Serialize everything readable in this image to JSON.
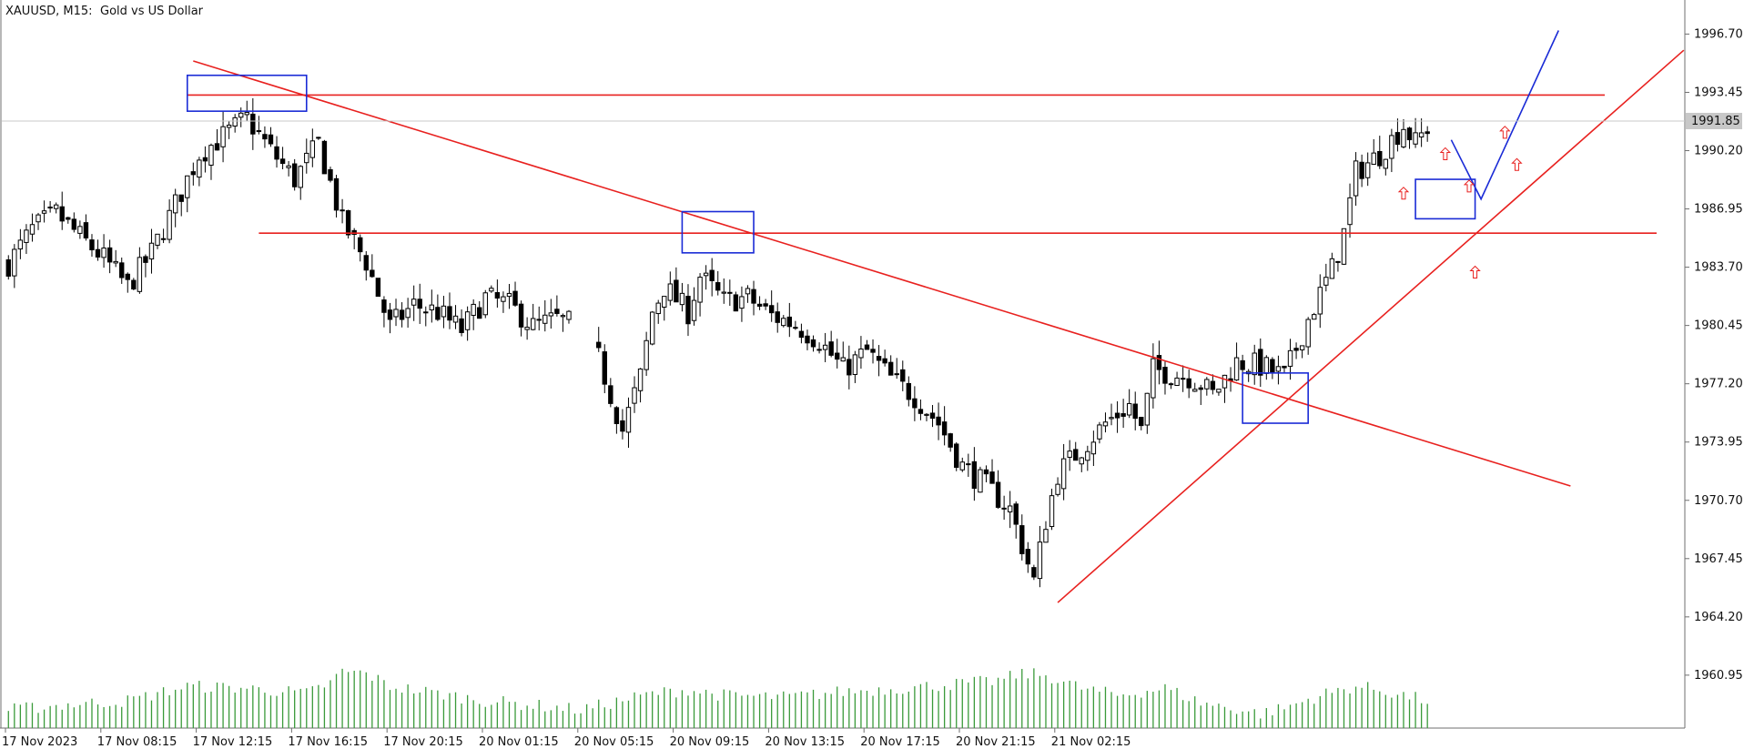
{
  "chart_header": {
    "symbol_timeframe": "XAUUSD, M15:",
    "description": "Gold vs US Dollar"
  },
  "colors": {
    "background": "#ffffff",
    "candle": "#000000",
    "volume": "#3a9a3a",
    "trendline": "#e8211f",
    "annotation": "#1a2bd6",
    "price_tag_bg": "#c8c8c8",
    "price_tag_text": "#ffffff",
    "current_price_line": "#c8c8c8"
  },
  "chart_data": {
    "type": "candlestick",
    "symbol": "XAUUSD",
    "timeframe": "M15",
    "ylim": [
      1958.0,
      1998.6
    ],
    "y_ticks": [
      "1996.70",
      "1993.45",
      "1990.20",
      "1986.95",
      "1983.70",
      "1980.45",
      "1977.20",
      "1973.95",
      "1970.70",
      "1967.45",
      "1964.20",
      "1960.95"
    ],
    "x_ticks": [
      "17 Nov 2023",
      "17 Nov 08:15",
      "17 Nov 12:15",
      "17 Nov 16:15",
      "17 Nov 20:15",
      "20 Nov 01:15",
      "20 Nov 05:15",
      "20 Nov 09:15",
      "20 Nov 13:15",
      "20 Nov 17:15",
      "20 Nov 21:15",
      "21 Nov 02:15"
    ],
    "current_price": "1991.85",
    "close_anchors": [
      [
        0,
        1983.9
      ],
      [
        4,
        1985.8
      ],
      [
        8,
        1986.7
      ],
      [
        12,
        1985.4
      ],
      [
        16,
        1984.2
      ],
      [
        20,
        1982.6
      ],
      [
        24,
        1984.5
      ],
      [
        28,
        1987.2
      ],
      [
        32,
        1990.0
      ],
      [
        36,
        1991.0
      ],
      [
        40,
        1992.0
      ],
      [
        44,
        1990.2
      ],
      [
        48,
        1988.6
      ],
      [
        52,
        1990.6
      ],
      [
        56,
        1986.2
      ],
      [
        60,
        1984.0
      ],
      [
        64,
        1980.4
      ],
      [
        68,
        1981.6
      ],
      [
        72,
        1981.2
      ],
      [
        76,
        1980.2
      ],
      [
        80,
        1982.0
      ],
      [
        84,
        1981.6
      ],
      [
        88,
        1980.4
      ],
      [
        92,
        1980.8
      ],
      [
        94,
        1980.6
      ],
      [
        96,
        null
      ],
      [
        99,
        1978.6
      ],
      [
        103,
        1974.6
      ],
      [
        106,
        1977.6
      ],
      [
        108,
        1981.2
      ],
      [
        110,
        1982.6
      ],
      [
        114,
        1981.2
      ],
      [
        116,
        1983.2
      ],
      [
        120,
        1981.8
      ],
      [
        124,
        1982.0
      ],
      [
        128,
        1981.0
      ],
      [
        132,
        1980.5
      ],
      [
        136,
        1979.6
      ],
      [
        140,
        1978.0
      ],
      [
        144,
        1979.0
      ],
      [
        148,
        1977.5
      ],
      [
        152,
        1976.5
      ],
      [
        156,
        1975.0
      ],
      [
        160,
        1972.6
      ],
      [
        164,
        1971.5
      ],
      [
        168,
        1970.2
      ],
      [
        170,
        1968.2
      ],
      [
        172,
        1966.2
      ],
      [
        174,
        1969.6
      ],
      [
        176,
        1972.2
      ],
      [
        180,
        1973.6
      ],
      [
        184,
        1975.0
      ],
      [
        188,
        1976.0
      ],
      [
        190,
        1974.6
      ],
      [
        192,
        1978.0
      ],
      [
        196,
        1977.7
      ],
      [
        198,
        1977.6
      ],
      [
        200,
        1977.2
      ],
      [
        202,
        1976.6
      ],
      [
        206,
        1978.4
      ],
      [
        210,
        1978.2
      ],
      [
        214,
        1977.6
      ],
      [
        218,
        1980.8
      ],
      [
        222,
        1983.6
      ],
      [
        224,
        1985.6
      ],
      [
        226,
        1989.0
      ],
      [
        230,
        1990.0
      ],
      [
        234,
        1991.6
      ],
      [
        236,
        1990.6
      ],
      [
        238,
        1991.5
      ]
    ],
    "volume_anchors": [
      [
        0,
        20
      ],
      [
        10,
        26
      ],
      [
        20,
        30
      ],
      [
        30,
        46
      ],
      [
        40,
        44
      ],
      [
        50,
        38
      ],
      [
        54,
        50
      ],
      [
        56,
        62
      ],
      [
        60,
        60
      ],
      [
        64,
        46
      ],
      [
        70,
        40
      ],
      [
        80,
        30
      ],
      [
        90,
        24
      ],
      [
        96,
        20
      ],
      [
        100,
        26
      ],
      [
        108,
        38
      ],
      [
        114,
        42
      ],
      [
        120,
        36
      ],
      [
        130,
        34
      ],
      [
        140,
        40
      ],
      [
        150,
        44
      ],
      [
        158,
        48
      ],
      [
        166,
        52
      ],
      [
        170,
        60
      ],
      [
        174,
        58
      ],
      [
        180,
        44
      ],
      [
        186,
        36
      ],
      [
        190,
        40
      ],
      [
        194,
        44
      ],
      [
        200,
        28
      ],
      [
        210,
        16
      ],
      [
        214,
        22
      ],
      [
        220,
        36
      ],
      [
        226,
        46
      ],
      [
        230,
        42
      ],
      [
        238,
        30
      ]
    ],
    "annotations": {
      "horizontal_lines": [
        1993.3,
        1985.6
      ],
      "trendline_descending": {
        "from": [
          31,
          1995.2
        ],
        "to": [
          262,
          1971.5
        ]
      },
      "trendline_ascending": {
        "from": [
          176,
          1965.0
        ],
        "to": [
          281,
          1995.8
        ]
      },
      "projection_path": [
        [
          242,
          1990.8
        ],
        [
          247,
          1987.5
        ],
        [
          260,
          1996.9
        ]
      ],
      "markers": [
        [
          234,
          1987.8
        ],
        [
          241,
          1990.0
        ],
        [
          245,
          1988.2
        ],
        [
          246,
          1983.4
        ],
        [
          251,
          1991.2
        ],
        [
          253,
          1989.4
        ]
      ],
      "boxes": [
        {
          "x0": 30,
          "x1": 50,
          "y0": 1992.4,
          "y1": 1994.4
        },
        {
          "x0": 113,
          "x1": 125,
          "y0": 1984.5,
          "y1": 1986.8
        },
        {
          "x0": 207,
          "x1": 218,
          "y0": 1975.0,
          "y1": 1977.8
        },
        {
          "x0": 236,
          "x1": 246,
          "y0": 1986.4,
          "y1": 1988.6
        }
      ]
    }
  }
}
